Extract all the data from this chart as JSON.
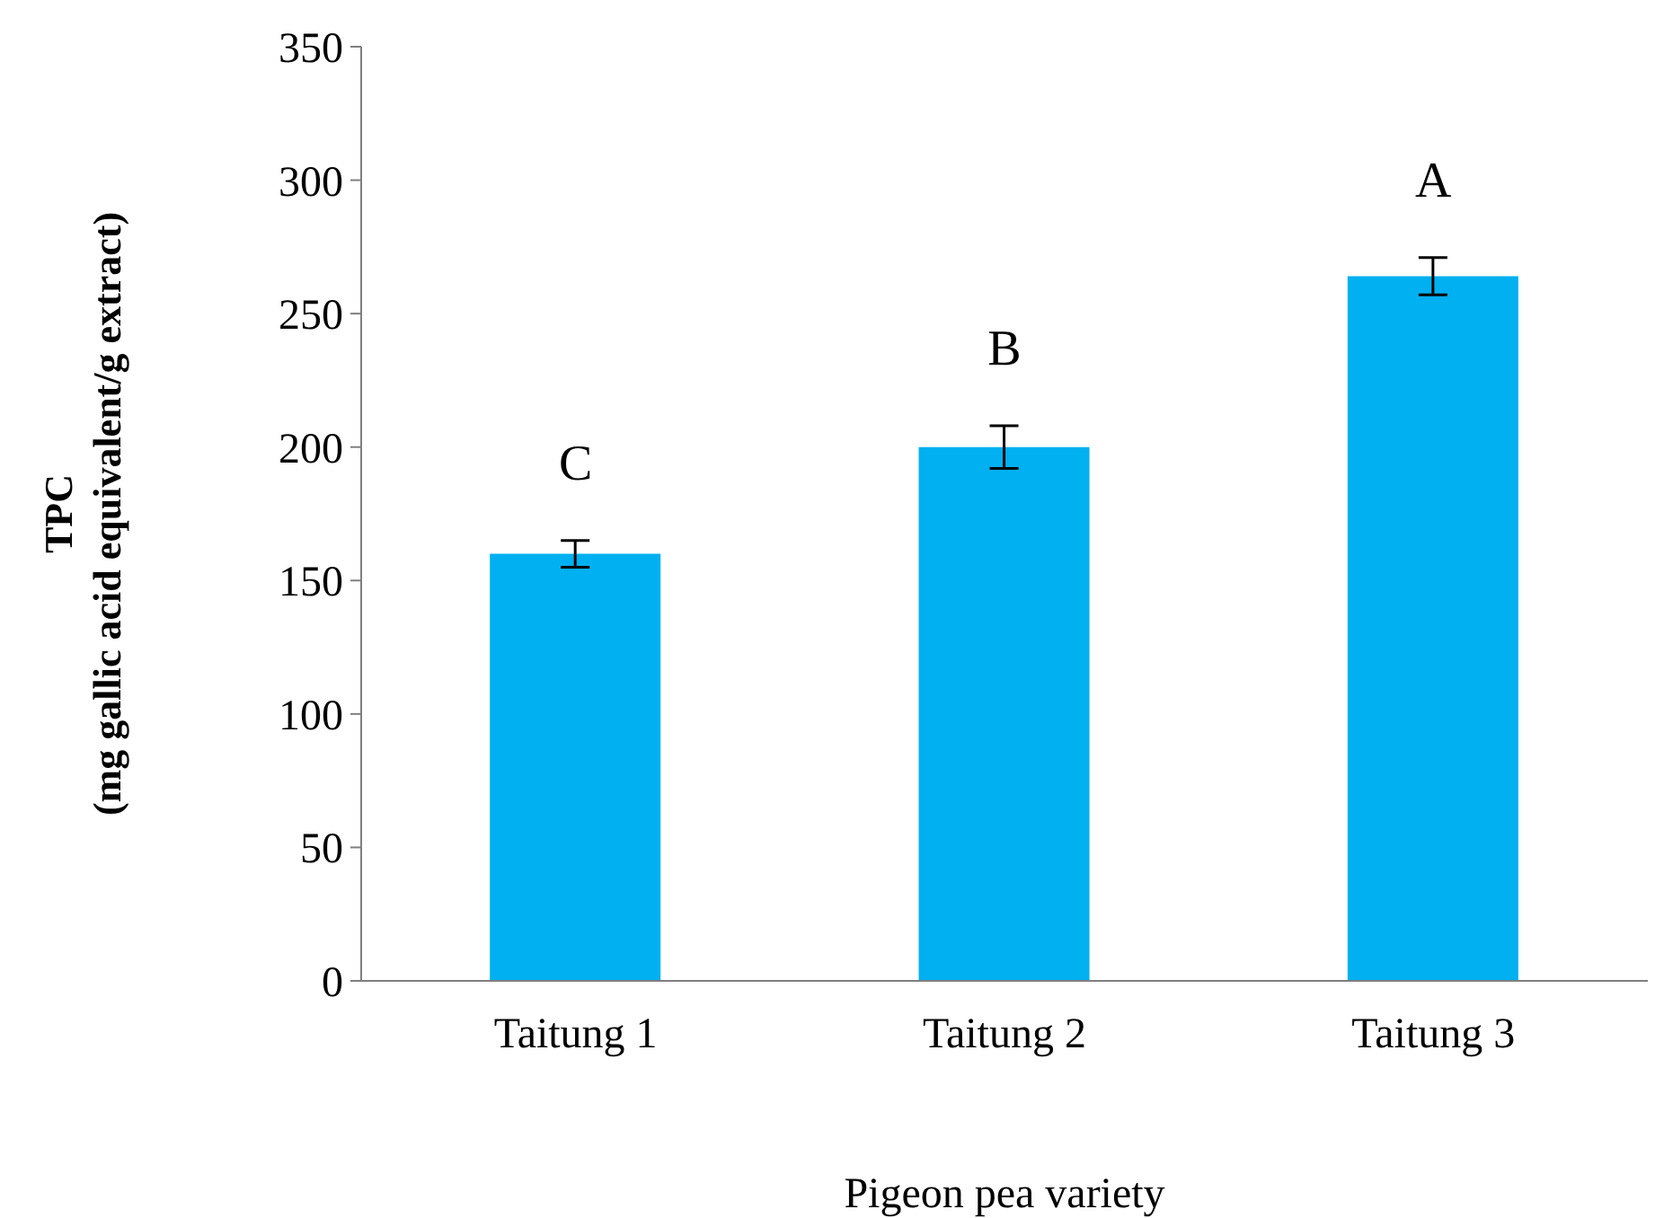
{
  "chart_data": {
    "type": "bar",
    "xlabel": "Pigeon pea variety",
    "ylabel": "TPC\n(mg gallic acid equivalent/g extract)",
    "categories": [
      "Taitung 1",
      "Taitung 2",
      "Taitung 3"
    ],
    "values": [
      160,
      200,
      264
    ],
    "errors": [
      5,
      8,
      7
    ],
    "color": "#00b0f0",
    "ylim": [
      0,
      350
    ],
    "yticks": [
      0,
      50,
      100,
      150,
      200,
      250,
      300,
      350
    ],
    "grid": false,
    "annotations": [
      "C",
      "B",
      "A"
    ]
  }
}
